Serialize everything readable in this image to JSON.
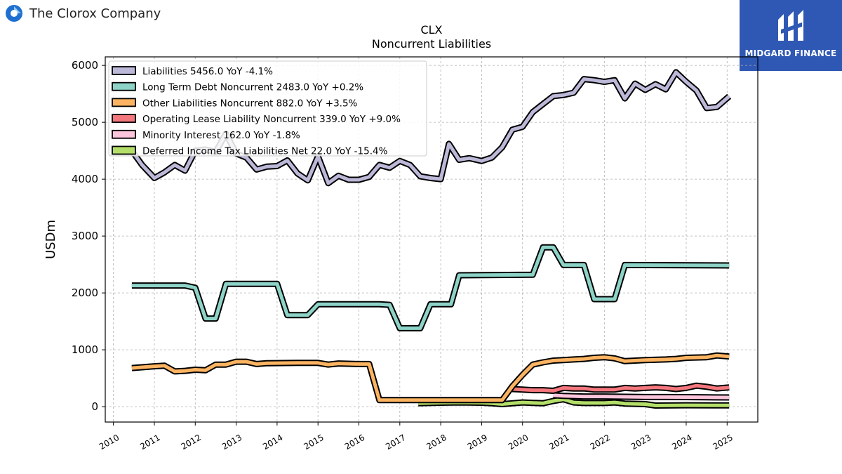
{
  "header": {
    "company_name": "The Clorox Company",
    "badge_text": "MIDGARD FINANCE"
  },
  "colors": {
    "logo_blue": "#1f6fd1",
    "logo_light": "#8ec5f2",
    "badge_bg": "#2f58b4"
  },
  "chart_data": {
    "type": "line",
    "title": "CLX",
    "subtitle": "Noncurrent  Liabilities",
    "ylabel": "USDm",
    "xlabel": "",
    "xlim": [
      2009.8,
      2025.75
    ],
    "ylim": [
      -270,
      6150
    ],
    "yticks": [
      0,
      1000,
      2000,
      3000,
      4000,
      5000,
      6000
    ],
    "xticks": [
      2010,
      2011,
      2012,
      2013,
      2014,
      2015,
      2016,
      2017,
      2018,
      2019,
      2020,
      2021,
      2022,
      2023,
      2024,
      2025
    ],
    "grid": true,
    "legend_position": "top-left",
    "series": [
      {
        "name": "Liabilities",
        "legend": "Liabilities  5456.0 YoY -4.1%",
        "color": "#bcb8d8",
        "points": [
          [
            2010.45,
            4500
          ],
          [
            2010.7,
            4250
          ],
          [
            2011.0,
            4020
          ],
          [
            2011.25,
            4120
          ],
          [
            2011.5,
            4250
          ],
          [
            2011.75,
            4150
          ],
          [
            2012.0,
            4500
          ],
          [
            2012.25,
            4520
          ],
          [
            2012.5,
            4480
          ],
          [
            2012.75,
            4800
          ],
          [
            2013.0,
            4450
          ],
          [
            2013.25,
            4380
          ],
          [
            2013.5,
            4170
          ],
          [
            2013.75,
            4220
          ],
          [
            2014.0,
            4230
          ],
          [
            2014.25,
            4330
          ],
          [
            2014.5,
            4100
          ],
          [
            2014.75,
            3980
          ],
          [
            2015.0,
            4400
          ],
          [
            2015.25,
            3930
          ],
          [
            2015.5,
            4060
          ],
          [
            2015.75,
            3990
          ],
          [
            2016.0,
            3990
          ],
          [
            2016.25,
            4040
          ],
          [
            2016.5,
            4250
          ],
          [
            2016.75,
            4200
          ],
          [
            2017.0,
            4320
          ],
          [
            2017.25,
            4250
          ],
          [
            2017.5,
            4050
          ],
          [
            2017.75,
            4020
          ],
          [
            2018.0,
            4000
          ],
          [
            2018.2,
            4620
          ],
          [
            2018.45,
            4340
          ],
          [
            2018.7,
            4370
          ],
          [
            2019.0,
            4320
          ],
          [
            2019.25,
            4380
          ],
          [
            2019.5,
            4560
          ],
          [
            2019.75,
            4870
          ],
          [
            2020.0,
            4920
          ],
          [
            2020.25,
            5180
          ],
          [
            2020.5,
            5320
          ],
          [
            2020.75,
            5460
          ],
          [
            2021.0,
            5480
          ],
          [
            2021.25,
            5520
          ],
          [
            2021.5,
            5760
          ],
          [
            2021.75,
            5740
          ],
          [
            2022.0,
            5710
          ],
          [
            2022.25,
            5740
          ],
          [
            2022.5,
            5420
          ],
          [
            2022.75,
            5680
          ],
          [
            2023.0,
            5570
          ],
          [
            2023.25,
            5670
          ],
          [
            2023.5,
            5580
          ],
          [
            2023.75,
            5880
          ],
          [
            2024.0,
            5710
          ],
          [
            2024.25,
            5560
          ],
          [
            2024.5,
            5250
          ],
          [
            2024.75,
            5270
          ],
          [
            2025.05,
            5456
          ]
        ]
      },
      {
        "name": "Long Term Debt Noncurrent",
        "legend": "Long Term Debt Noncurrent  2483.0 YoY +0.2%",
        "color": "#8dd3c7",
        "points": [
          [
            2010.45,
            2130
          ],
          [
            2011.75,
            2130
          ],
          [
            2012.0,
            2090
          ],
          [
            2012.25,
            1550
          ],
          [
            2012.5,
            1550
          ],
          [
            2012.75,
            2160
          ],
          [
            2014.0,
            2160
          ],
          [
            2014.25,
            1610
          ],
          [
            2014.75,
            1610
          ],
          [
            2015.0,
            1800
          ],
          [
            2016.5,
            1800
          ],
          [
            2016.75,
            1790
          ],
          [
            2017.0,
            1380
          ],
          [
            2017.5,
            1380
          ],
          [
            2017.75,
            1800
          ],
          [
            2018.25,
            1800
          ],
          [
            2018.45,
            2310
          ],
          [
            2020.25,
            2320
          ],
          [
            2020.5,
            2800
          ],
          [
            2020.75,
            2800
          ],
          [
            2021.0,
            2490
          ],
          [
            2021.5,
            2490
          ],
          [
            2021.75,
            1890
          ],
          [
            2022.25,
            1890
          ],
          [
            2022.5,
            2490
          ],
          [
            2025.05,
            2483
          ]
        ]
      },
      {
        "name": "Other Liabilities Noncurrent",
        "legend": "Other Liabilities Noncurrent  882.0 YoY +3.5%",
        "color": "#fdb462",
        "points": [
          [
            2010.45,
            680
          ],
          [
            2011.0,
            710
          ],
          [
            2011.25,
            720
          ],
          [
            2011.5,
            620
          ],
          [
            2011.75,
            630
          ],
          [
            2012.0,
            650
          ],
          [
            2012.25,
            640
          ],
          [
            2012.5,
            740
          ],
          [
            2012.75,
            740
          ],
          [
            2013.0,
            790
          ],
          [
            2013.25,
            790
          ],
          [
            2013.5,
            750
          ],
          [
            2013.75,
            765
          ],
          [
            2014.5,
            770
          ],
          [
            2015.0,
            770
          ],
          [
            2015.25,
            740
          ],
          [
            2015.5,
            760
          ],
          [
            2016.0,
            750
          ],
          [
            2016.25,
            750
          ],
          [
            2016.5,
            115
          ],
          [
            2019.0,
            115
          ],
          [
            2019.25,
            115
          ],
          [
            2019.5,
            115
          ],
          [
            2019.75,
            360
          ],
          [
            2020.0,
            560
          ],
          [
            2020.25,
            740
          ],
          [
            2020.5,
            780
          ],
          [
            2020.75,
            810
          ],
          [
            2021.0,
            820
          ],
          [
            2021.25,
            830
          ],
          [
            2021.5,
            840
          ],
          [
            2021.75,
            860
          ],
          [
            2022.0,
            870
          ],
          [
            2022.25,
            850
          ],
          [
            2022.5,
            800
          ],
          [
            2022.75,
            810
          ],
          [
            2023.0,
            820
          ],
          [
            2023.5,
            830
          ],
          [
            2023.75,
            840
          ],
          [
            2024.0,
            860
          ],
          [
            2024.5,
            870
          ],
          [
            2024.75,
            900
          ],
          [
            2025.05,
            882
          ]
        ]
      },
      {
        "name": "Operating Lease Liability Noncurrent",
        "legend": "Operating Lease Liability Noncurrent  339.0 YoY +9.0%",
        "color": "#f4777e",
        "points": [
          [
            2019.75,
            310
          ],
          [
            2020.25,
            290
          ],
          [
            2020.5,
            290
          ],
          [
            2020.75,
            280
          ],
          [
            2021.0,
            330
          ],
          [
            2021.25,
            320
          ],
          [
            2021.5,
            320
          ],
          [
            2021.75,
            300
          ],
          [
            2022.25,
            300
          ],
          [
            2022.5,
            330
          ],
          [
            2022.75,
            320
          ],
          [
            2023.0,
            330
          ],
          [
            2023.25,
            340
          ],
          [
            2023.5,
            330
          ],
          [
            2023.75,
            310
          ],
          [
            2024.0,
            330
          ],
          [
            2024.25,
            370
          ],
          [
            2024.5,
            350
          ],
          [
            2024.75,
            320
          ],
          [
            2025.05,
            339
          ]
        ]
      },
      {
        "name": "Minority Interest",
        "legend": "Minority Interest  162.0 YoY -1.8%",
        "color": "#fcc5dc",
        "points": [
          [
            2020.75,
            200
          ],
          [
            2021.0,
            190
          ],
          [
            2021.5,
            180
          ],
          [
            2022.0,
            180
          ],
          [
            2022.5,
            175
          ],
          [
            2023.0,
            170
          ],
          [
            2023.5,
            170
          ],
          [
            2024.0,
            168
          ],
          [
            2024.5,
            165
          ],
          [
            2025.05,
            162
          ]
        ]
      },
      {
        "name": "Deferred Income Tax Liabilities Net",
        "legend": "Deferred Income Tax Liabilities Net  22.0 YoY -15.4%",
        "color": "#b3de69",
        "points": [
          [
            2017.45,
            60
          ],
          [
            2018.0,
            70
          ],
          [
            2018.5,
            75
          ],
          [
            2019.0,
            70
          ],
          [
            2019.25,
            60
          ],
          [
            2019.5,
            45
          ],
          [
            2019.75,
            60
          ],
          [
            2020.0,
            75
          ],
          [
            2020.5,
            60
          ],
          [
            2020.75,
            100
          ],
          [
            2021.0,
            130
          ],
          [
            2021.25,
            75
          ],
          [
            2021.5,
            65
          ],
          [
            2022.0,
            65
          ],
          [
            2022.25,
            75
          ],
          [
            2022.5,
            55
          ],
          [
            2023.0,
            45
          ],
          [
            2023.25,
            20
          ],
          [
            2024.0,
            25
          ],
          [
            2025.05,
            22
          ]
        ]
      }
    ]
  }
}
